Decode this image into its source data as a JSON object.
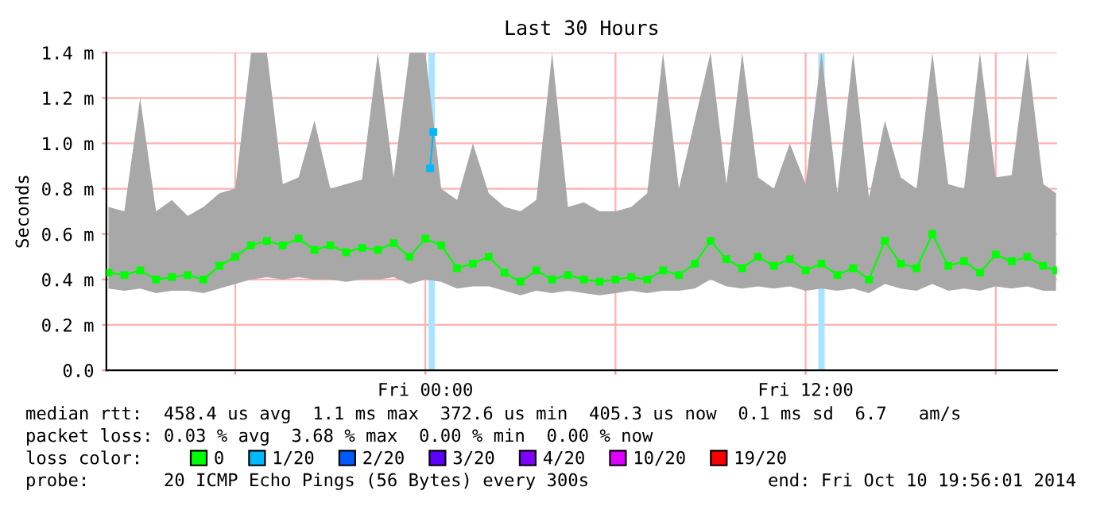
{
  "chart_data": {
    "type": "line",
    "title": "Last 30 Hours",
    "ylabel": "Seconds",
    "legend_title": "loss color:",
    "annotations": [
      "median rtt:  458.4 us avg  1.1 ms max  372.6 us min  405.3 us now  0.1 ms sd  6.7   am/s",
      "packet loss: 0.03 % avg  3.68 % max  0.00 % min  0.00 % now",
      "probe:       20 ICMP Echo Pings (56 Bytes) every 300s",
      "end: Fri Oct 10 19:56:01 2014"
    ],
    "xlim": [
      "2014-10-09T13:56",
      "2014-10-10T19:56"
    ],
    "xticks": [
      {
        "value": "2014-10-09T18:00",
        "label": null
      },
      {
        "value": "2014-10-10T00:00",
        "label": "Fri 00:00"
      },
      {
        "value": "2014-10-10T06:00",
        "label": null
      },
      {
        "value": "2014-10-10T12:00",
        "label": "Fri 12:00"
      },
      {
        "value": "2014-10-10T18:00",
        "label": null
      }
    ],
    "ylim": [
      0,
      1.4
    ],
    "yticks": [
      {
        "value": 0,
        "label": "0.0"
      },
      {
        "value": 0.2,
        "label": "0.2 m"
      },
      {
        "value": 0.4,
        "label": "0.4 m"
      },
      {
        "value": 0.6,
        "label": "0.6 m"
      },
      {
        "value": 0.8,
        "label": "0.8 m"
      },
      {
        "value": 1.0,
        "label": "1.0 m"
      },
      {
        "value": 1.2,
        "label": "1.2 m"
      },
      {
        "value": 1.4,
        "label": "1.4 m"
      }
    ],
    "grid": true,
    "legend": "bottom",
    "marker": "square",
    "bands": [
      {
        "axis": "x",
        "from": "2014-10-10T00:06",
        "to": "2014-10-10T00:18",
        "color": "#a8e4ff"
      },
      {
        "axis": "x",
        "from": "2014-10-10T12:24",
        "to": "2014-10-10T12:36",
        "color": "#a8e4ff"
      }
    ],
    "series": [
      {
        "name": "0",
        "color": "#00ff00",
        "x": [
          "2014-10-09T14:00",
          "2014-10-09T14:30",
          "2014-10-09T15:00",
          "2014-10-09T15:30",
          "2014-10-09T16:00",
          "2014-10-09T16:30",
          "2014-10-09T17:00",
          "2014-10-09T17:30",
          "2014-10-09T18:00",
          "2014-10-09T18:30",
          "2014-10-09T19:00",
          "2014-10-09T19:30",
          "2014-10-09T20:00",
          "2014-10-09T20:30",
          "2014-10-09T21:00",
          "2014-10-09T21:30",
          "2014-10-09T22:00",
          "2014-10-09T22:30",
          "2014-10-09T23:00",
          "2014-10-09T23:30",
          "2014-10-10T00:00",
          "2014-10-10T00:30",
          "2014-10-10T01:00",
          "2014-10-10T01:30",
          "2014-10-10T02:00",
          "2014-10-10T02:30",
          "2014-10-10T03:00",
          "2014-10-10T03:30",
          "2014-10-10T04:00",
          "2014-10-10T04:30",
          "2014-10-10T05:00",
          "2014-10-10T05:30",
          "2014-10-10T06:00",
          "2014-10-10T06:30",
          "2014-10-10T07:00",
          "2014-10-10T07:30",
          "2014-10-10T08:00",
          "2014-10-10T08:30",
          "2014-10-10T09:00",
          "2014-10-10T09:30",
          "2014-10-10T10:00",
          "2014-10-10T10:30",
          "2014-10-10T11:00",
          "2014-10-10T11:30",
          "2014-10-10T12:00",
          "2014-10-10T12:30",
          "2014-10-10T13:00",
          "2014-10-10T13:30",
          "2014-10-10T14:00",
          "2014-10-10T14:30",
          "2014-10-10T15:00",
          "2014-10-10T15:30",
          "2014-10-10T16:00",
          "2014-10-10T16:30",
          "2014-10-10T17:00",
          "2014-10-10T17:30",
          "2014-10-10T18:00",
          "2014-10-10T18:30",
          "2014-10-10T19:00",
          "2014-10-10T19:30",
          "2014-10-10T19:54"
        ],
        "values": [
          0.43,
          0.42,
          0.44,
          0.4,
          0.41,
          0.42,
          0.4,
          0.46,
          0.5,
          0.55,
          0.57,
          0.55,
          0.58,
          0.53,
          0.55,
          0.52,
          0.54,
          0.53,
          0.56,
          0.5,
          0.58,
          0.55,
          0.45,
          0.47,
          0.5,
          0.43,
          0.39,
          0.44,
          0.4,
          0.42,
          0.4,
          0.39,
          0.4,
          0.41,
          0.4,
          0.44,
          0.42,
          0.47,
          0.57,
          0.49,
          0.45,
          0.5,
          0.46,
          0.49,
          0.44,
          0.47,
          0.42,
          0.45,
          0.4,
          0.57,
          0.47,
          0.45,
          0.6,
          0.46,
          0.48,
          0.43,
          0.51,
          0.48,
          0.5,
          0.46,
          0.44
        ],
        "lower": [
          0.36,
          0.35,
          0.36,
          0.34,
          0.35,
          0.35,
          0.34,
          0.36,
          0.38,
          0.4,
          0.41,
          0.4,
          0.41,
          0.4,
          0.4,
          0.39,
          0.4,
          0.4,
          0.41,
          0.38,
          0.4,
          0.39,
          0.36,
          0.37,
          0.37,
          0.35,
          0.33,
          0.35,
          0.34,
          0.35,
          0.34,
          0.33,
          0.34,
          0.35,
          0.34,
          0.35,
          0.35,
          0.36,
          0.4,
          0.37,
          0.36,
          0.37,
          0.36,
          0.37,
          0.35,
          0.36,
          0.35,
          0.36,
          0.34,
          0.38,
          0.36,
          0.35,
          0.38,
          0.35,
          0.36,
          0.35,
          0.37,
          0.36,
          0.37,
          0.35,
          0.35
        ],
        "upper": [
          0.72,
          0.7,
          1.2,
          0.7,
          0.75,
          0.68,
          0.72,
          0.78,
          0.8,
          1.4,
          1.4,
          0.82,
          0.85,
          1.1,
          0.8,
          0.82,
          0.84,
          1.4,
          0.85,
          1.4,
          1.4,
          0.8,
          0.75,
          1.0,
          0.78,
          0.72,
          0.7,
          0.75,
          1.4,
          0.72,
          0.74,
          0.7,
          0.7,
          0.72,
          0.78,
          1.4,
          0.8,
          1.1,
          1.4,
          0.82,
          1.4,
          0.85,
          0.8,
          1.0,
          0.82,
          1.4,
          0.78,
          1.4,
          0.76,
          1.1,
          0.85,
          0.8,
          1.4,
          0.82,
          0.8,
          1.4,
          0.85,
          0.86,
          1.4,
          0.82,
          0.78
        ]
      },
      {
        "name": "1/20",
        "color": "#00b8ff",
        "x": [
          "2014-10-10T00:09",
          "2014-10-10T00:15"
        ],
        "values": [
          0.89,
          1.05
        ]
      },
      {
        "name": "2/20",
        "color": "#0059ff"
      },
      {
        "name": "3/20",
        "color": "#5e00ff"
      },
      {
        "name": "4/20",
        "color": "#7e00ff"
      },
      {
        "name": "10/20",
        "color": "#dd00ff"
      },
      {
        "name": "19/20",
        "color": "#ff0000"
      }
    ]
  }
}
